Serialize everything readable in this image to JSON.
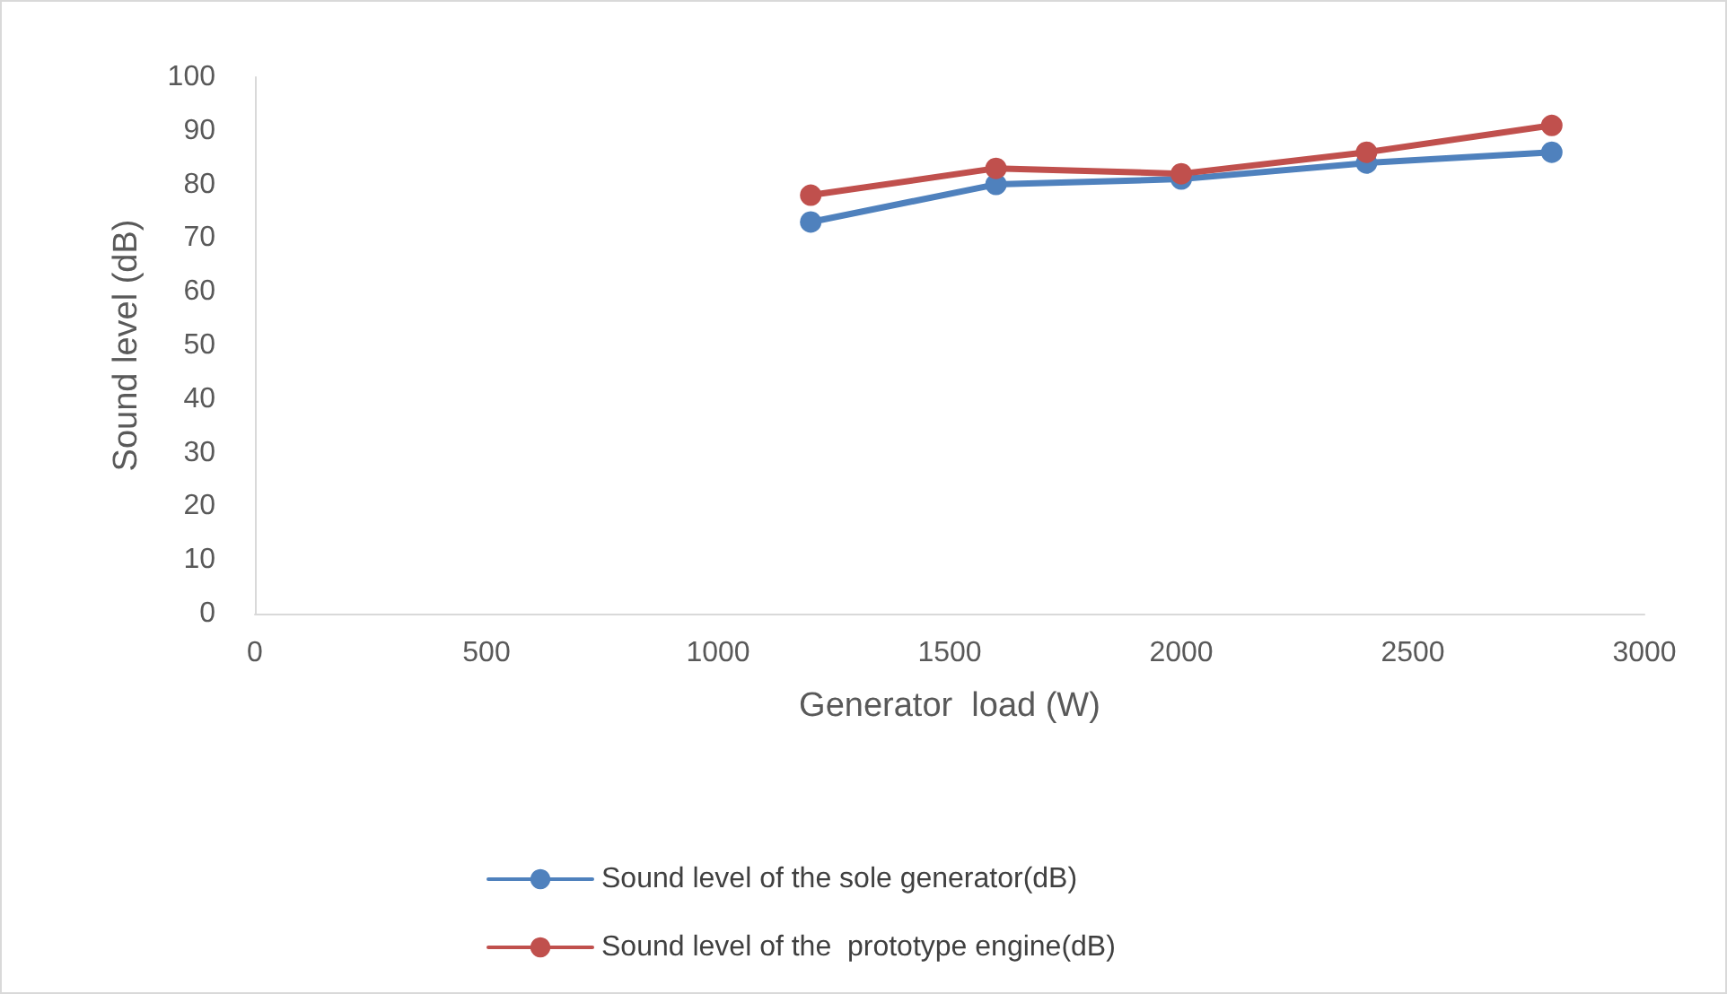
{
  "chart_data": {
    "type": "line",
    "xlabel": "Generator  load (W)",
    "ylabel": "Sound level (dB)",
    "x": [
      1200,
      1600,
      2000,
      2400,
      2800
    ],
    "series": [
      {
        "name": "Sound level of the sole generator(dB)",
        "color": "#4f81bd",
        "values": [
          73,
          80,
          81,
          84,
          86
        ]
      },
      {
        "name": "Sound level of the  prototype engine(dB)",
        "color": "#c0504d",
        "values": [
          78,
          83,
          82,
          86,
          91
        ]
      }
    ],
    "xlim": [
      0,
      3000
    ],
    "xticks": [
      0,
      500,
      1000,
      1500,
      2000,
      2500,
      3000
    ],
    "ylim": [
      0,
      100
    ],
    "yticks": [
      0,
      10,
      20,
      30,
      40,
      50,
      60,
      70,
      80,
      90,
      100
    ],
    "grid": false,
    "legend": "bottom",
    "marker": "circle",
    "line_style": "solid"
  }
}
